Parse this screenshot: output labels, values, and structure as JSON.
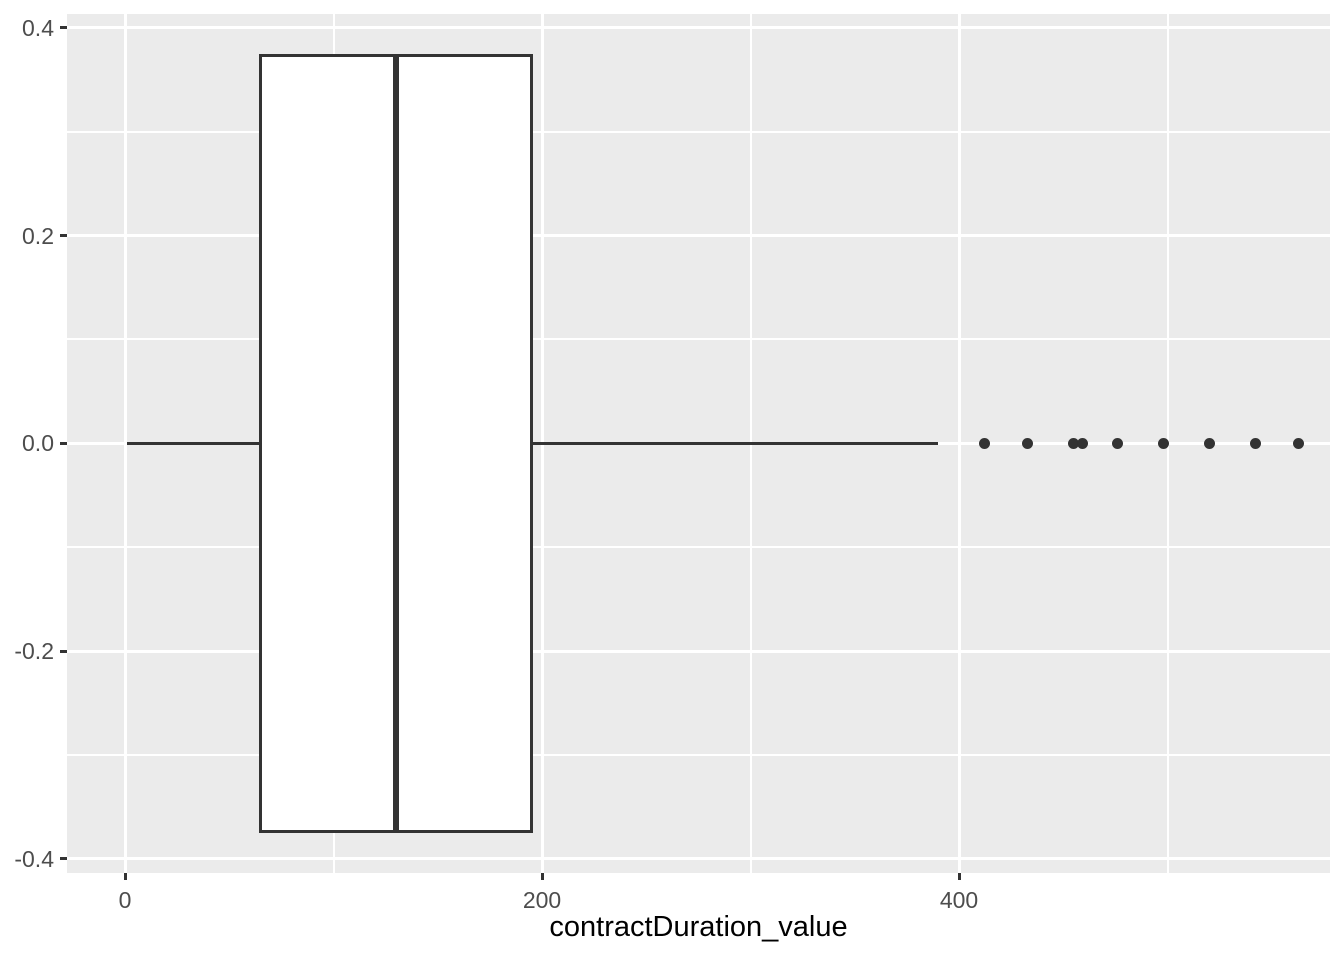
{
  "chart_data": {
    "type": "boxplot",
    "orientation": "horizontal",
    "title": "",
    "xlabel": "contractDuration_value",
    "ylabel": "",
    "grid": "on",
    "legend": "none",
    "x_axis": {
      "range": [
        -27.8,
        578
      ],
      "ticks": [
        {
          "value": 0,
          "label": "0"
        },
        {
          "value": 200,
          "label": "200"
        },
        {
          "value": 400,
          "label": "400"
        }
      ],
      "minor_gridlines": [
        100,
        300,
        500
      ]
    },
    "y_axis": {
      "range": [
        -0.414,
        0.413
      ],
      "ticks": [
        {
          "value": 0.4,
          "label": "0.4"
        },
        {
          "value": 0.2,
          "label": "0.2"
        },
        {
          "value": 0.0,
          "label": "0.0"
        },
        {
          "value": -0.2,
          "label": "-0.2"
        },
        {
          "value": -0.4,
          "label": "-0.4"
        }
      ],
      "minor_gridlines": [
        0.3,
        0.1,
        -0.1,
        -0.3
      ]
    },
    "series": [
      {
        "name": "contractDuration_value",
        "stats": {
          "whisker_min": 1,
          "q1": 65,
          "median": 130,
          "q3": 195,
          "whisker_max": 390
        },
        "outliers": [
          412,
          433,
          455,
          459,
          476,
          498,
          520,
          542,
          563
        ],
        "box_center_y": 0,
        "box_half_height": 0.375
      }
    ]
  },
  "colors": {
    "figure_bg": "#FFFFFF",
    "panel_bg": "#EBEBEB",
    "gridline": "#FFFFFF",
    "box_fill": "#FFFFFF",
    "stroke": "#333333",
    "tick_mark": "#333333",
    "axis_text": "#4D4D4D",
    "axis_title": "#000000"
  }
}
